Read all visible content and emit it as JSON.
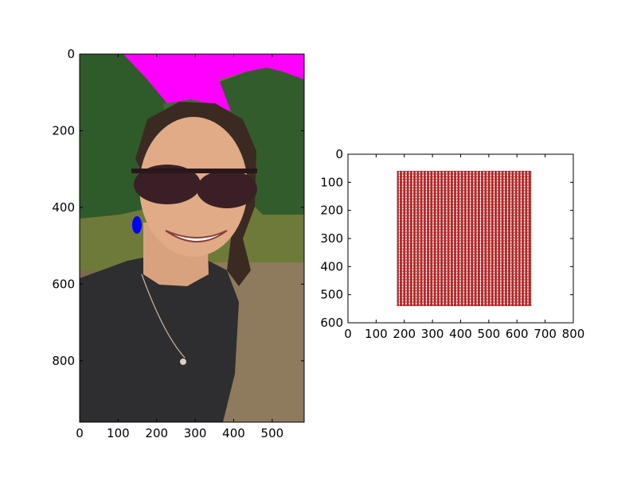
{
  "figure": {
    "background": "#ffffff"
  },
  "chart_data": [
    {
      "type": "image",
      "title": "",
      "xlabel": "",
      "ylabel": "",
      "image_extent": {
        "width": 583,
        "height": 960
      },
      "xlim": [
        0,
        583
      ],
      "ylim": [
        960,
        0
      ],
      "y_inverted": true,
      "xticks": [
        0,
        100,
        200,
        300,
        400,
        500
      ],
      "yticks": [
        0,
        200,
        400,
        600,
        800
      ],
      "grid": false,
      "legend": "none",
      "overlay_regions": [
        {
          "region": "sky",
          "color": "#ff00ff"
        },
        {
          "region": "segment-blob",
          "color": "#0000ff"
        }
      ]
    },
    {
      "type": "scatter",
      "title": "",
      "xlabel": "",
      "ylabel": "",
      "xlim": [
        0,
        800
      ],
      "ylim": [
        600,
        0
      ],
      "y_inverted": true,
      "xticks": [
        0,
        100,
        200,
        300,
        400,
        500,
        600,
        700,
        800
      ],
      "yticks": [
        0,
        100,
        200,
        300,
        400,
        500,
        600
      ],
      "grid": false,
      "legend": "none",
      "marker_color": "#cc2222",
      "marker_edge_color": "#8b1a1a",
      "points_region": {
        "x": [
          175,
          650
        ],
        "y": [
          60,
          540
        ]
      },
      "point_spacing": 10
    }
  ]
}
